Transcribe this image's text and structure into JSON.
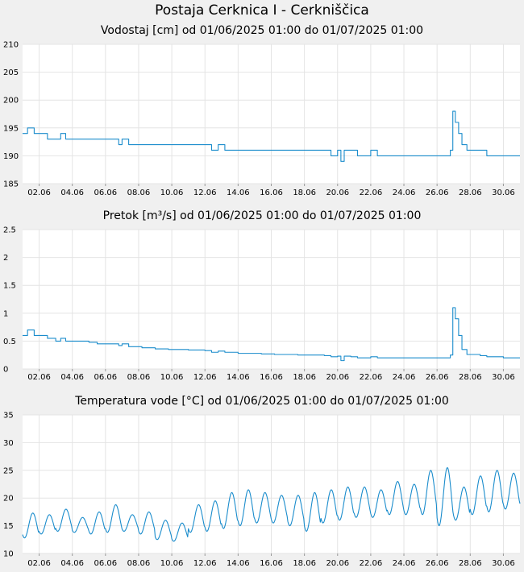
{
  "page": {
    "title": "Postaja Cerknica I - Cerkniščica"
  },
  "chart_data": [
    {
      "type": "line",
      "title": "Vodostaj [cm] od 01/06/2025 01:00 do 01/07/2025 01:00",
      "xlabel": "",
      "ylabel": "",
      "ylim": [
        185,
        210
      ],
      "yticks": [
        "185",
        "190",
        "195",
        "200",
        "205",
        "210"
      ],
      "xticks": [
        "02.06",
        "04.06",
        "06.06",
        "08.06",
        "10.06",
        "12.06",
        "14.06",
        "16.06",
        "18.06",
        "20.06",
        "22.06",
        "24.06",
        "26.06",
        "28.06",
        "30.06"
      ],
      "grid": true,
      "color": "#1a8ccc",
      "series": [
        {
          "points": [
            [
              1.0,
              194
            ],
            [
              1.3,
              195
            ],
            [
              1.7,
              194
            ],
            [
              2.1,
              194
            ],
            [
              2.5,
              193
            ],
            [
              3.0,
              193
            ],
            [
              3.3,
              194
            ],
            [
              3.6,
              193
            ],
            [
              4.2,
              193
            ],
            [
              5.0,
              193
            ],
            [
              5.5,
              193
            ],
            [
              6.2,
              193
            ],
            [
              6.8,
              192
            ],
            [
              7.0,
              193
            ],
            [
              7.4,
              192
            ],
            [
              7.8,
              192
            ],
            [
              8.2,
              192
            ],
            [
              8.6,
              192
            ],
            [
              9.0,
              192
            ],
            [
              9.4,
              192
            ],
            [
              9.8,
              192
            ],
            [
              10.2,
              192
            ],
            [
              10.6,
              192
            ],
            [
              11.0,
              192
            ],
            [
              11.6,
              192
            ],
            [
              12.0,
              192
            ],
            [
              12.4,
              191
            ],
            [
              12.8,
              192
            ],
            [
              13.2,
              191
            ],
            [
              13.6,
              191
            ],
            [
              14.0,
              191
            ],
            [
              14.6,
              191
            ],
            [
              15.0,
              191
            ],
            [
              15.4,
              191
            ],
            [
              15.8,
              191
            ],
            [
              16.2,
              191
            ],
            [
              16.8,
              191
            ],
            [
              17.2,
              191
            ],
            [
              17.6,
              191
            ],
            [
              18.0,
              191
            ],
            [
              18.4,
              191
            ],
            [
              18.8,
              191
            ],
            [
              19.2,
              191
            ],
            [
              19.6,
              190
            ],
            [
              20.0,
              191
            ],
            [
              20.2,
              189
            ],
            [
              20.4,
              191
            ],
            [
              20.8,
              191
            ],
            [
              21.2,
              190
            ],
            [
              21.6,
              190
            ],
            [
              22.0,
              191
            ],
            [
              22.4,
              190
            ],
            [
              22.8,
              190
            ],
            [
              23.2,
              190
            ],
            [
              23.6,
              190
            ],
            [
              24.0,
              190
            ],
            [
              24.4,
              190
            ],
            [
              24.8,
              190
            ],
            [
              25.2,
              190
            ],
            [
              25.6,
              190
            ],
            [
              26.0,
              190
            ],
            [
              26.3,
              190
            ],
            [
              26.6,
              190
            ],
            [
              26.8,
              191
            ],
            [
              26.95,
              198
            ],
            [
              27.1,
              196
            ],
            [
              27.3,
              194
            ],
            [
              27.5,
              192
            ],
            [
              27.8,
              191
            ],
            [
              28.2,
              191
            ],
            [
              28.6,
              191
            ],
            [
              29.0,
              190
            ],
            [
              29.5,
              190
            ],
            [
              30.0,
              190
            ],
            [
              30.5,
              190
            ],
            [
              31.0,
              190
            ]
          ]
        }
      ]
    },
    {
      "type": "line",
      "title": "Pretok [m³/s] od 01/06/2025 01:00 do 01/07/2025 01:00",
      "xlabel": "",
      "ylabel": "",
      "ylim": [
        0,
        2.5
      ],
      "yticks": [
        "0",
        "0.5",
        "1",
        "1.5",
        "2",
        "2.5"
      ],
      "xticks": [
        "02.06",
        "04.06",
        "06.06",
        "08.06",
        "10.06",
        "12.06",
        "14.06",
        "16.06",
        "18.06",
        "20.06",
        "22.06",
        "24.06",
        "26.06",
        "28.06",
        "30.06"
      ],
      "grid": true,
      "color": "#1a8ccc",
      "series": [
        {
          "points": [
            [
              1.0,
              0.6
            ],
            [
              1.3,
              0.7
            ],
            [
              1.7,
              0.6
            ],
            [
              2.1,
              0.6
            ],
            [
              2.5,
              0.55
            ],
            [
              3.0,
              0.5
            ],
            [
              3.3,
              0.55
            ],
            [
              3.6,
              0.5
            ],
            [
              4.2,
              0.5
            ],
            [
              5.0,
              0.48
            ],
            [
              5.5,
              0.45
            ],
            [
              6.2,
              0.45
            ],
            [
              6.8,
              0.42
            ],
            [
              7.0,
              0.45
            ],
            [
              7.4,
              0.4
            ],
            [
              7.8,
              0.4
            ],
            [
              8.2,
              0.38
            ],
            [
              8.6,
              0.38
            ],
            [
              9.0,
              0.36
            ],
            [
              9.4,
              0.36
            ],
            [
              9.8,
              0.35
            ],
            [
              10.2,
              0.35
            ],
            [
              10.6,
              0.35
            ],
            [
              11.0,
              0.34
            ],
            [
              11.6,
              0.34
            ],
            [
              12.0,
              0.33
            ],
            [
              12.4,
              0.3
            ],
            [
              12.8,
              0.32
            ],
            [
              13.2,
              0.3
            ],
            [
              13.6,
              0.3
            ],
            [
              14.0,
              0.28
            ],
            [
              14.6,
              0.28
            ],
            [
              15.0,
              0.28
            ],
            [
              15.4,
              0.27
            ],
            [
              15.8,
              0.27
            ],
            [
              16.2,
              0.26
            ],
            [
              16.8,
              0.26
            ],
            [
              17.2,
              0.26
            ],
            [
              17.6,
              0.25
            ],
            [
              18.0,
              0.25
            ],
            [
              18.4,
              0.25
            ],
            [
              18.8,
              0.25
            ],
            [
              19.2,
              0.24
            ],
            [
              19.6,
              0.22
            ],
            [
              20.0,
              0.23
            ],
            [
              20.2,
              0.15
            ],
            [
              20.4,
              0.23
            ],
            [
              20.8,
              0.22
            ],
            [
              21.2,
              0.2
            ],
            [
              21.6,
              0.2
            ],
            [
              22.0,
              0.22
            ],
            [
              22.4,
              0.2
            ],
            [
              22.8,
              0.2
            ],
            [
              23.2,
              0.2
            ],
            [
              23.6,
              0.2
            ],
            [
              24.0,
              0.2
            ],
            [
              24.4,
              0.2
            ],
            [
              24.8,
              0.2
            ],
            [
              25.2,
              0.2
            ],
            [
              25.6,
              0.2
            ],
            [
              26.0,
              0.2
            ],
            [
              26.3,
              0.2
            ],
            [
              26.6,
              0.2
            ],
            [
              26.8,
              0.25
            ],
            [
              26.95,
              1.1
            ],
            [
              27.1,
              0.9
            ],
            [
              27.3,
              0.6
            ],
            [
              27.5,
              0.35
            ],
            [
              27.8,
              0.26
            ],
            [
              28.2,
              0.26
            ],
            [
              28.6,
              0.24
            ],
            [
              29.0,
              0.22
            ],
            [
              29.5,
              0.22
            ],
            [
              30.0,
              0.2
            ],
            [
              30.5,
              0.2
            ],
            [
              31.0,
              0.2
            ]
          ]
        }
      ]
    },
    {
      "type": "line",
      "title": "Temperatura vode [°C] od 01/06/2025 01:00 do 01/07/2025 01:00",
      "xlabel": "",
      "ylabel": "",
      "ylim": [
        10,
        35
      ],
      "yticks": [
        "10",
        "15",
        "20",
        "25",
        "30",
        "35"
      ],
      "xticks": [
        "02.06",
        "04.06",
        "06.06",
        "08.06",
        "10.06",
        "12.06",
        "14.06",
        "16.06",
        "18.06",
        "20.06",
        "22.06",
        "24.06",
        "26.06",
        "28.06",
        "30.06"
      ],
      "grid": true,
      "color": "#1a8ccc",
      "series": [
        {
          "daily_min": [
            12.8,
            13.5,
            14.0,
            13.8,
            13.5,
            13.8,
            14.0,
            13.5,
            12.5,
            12.2,
            13.8,
            14.0,
            14.5,
            15.0,
            15.5,
            15.5,
            15.0,
            14.0,
            15.5,
            16.0,
            16.5,
            16.5,
            17.0,
            17.0,
            17.0,
            15.0,
            16.0,
            17.0,
            17.5,
            18.0
          ],
          "daily_max": [
            17.3,
            17.0,
            18.0,
            16.5,
            17.5,
            18.8,
            17.0,
            17.5,
            16.0,
            15.5,
            18.8,
            19.5,
            21.0,
            21.5,
            21.0,
            20.5,
            20.5,
            21.0,
            21.5,
            22.0,
            22.0,
            21.5,
            23.0,
            22.5,
            25.0,
            25.5,
            22.0,
            24.0,
            25.0,
            24.5
          ]
        }
      ]
    }
  ]
}
